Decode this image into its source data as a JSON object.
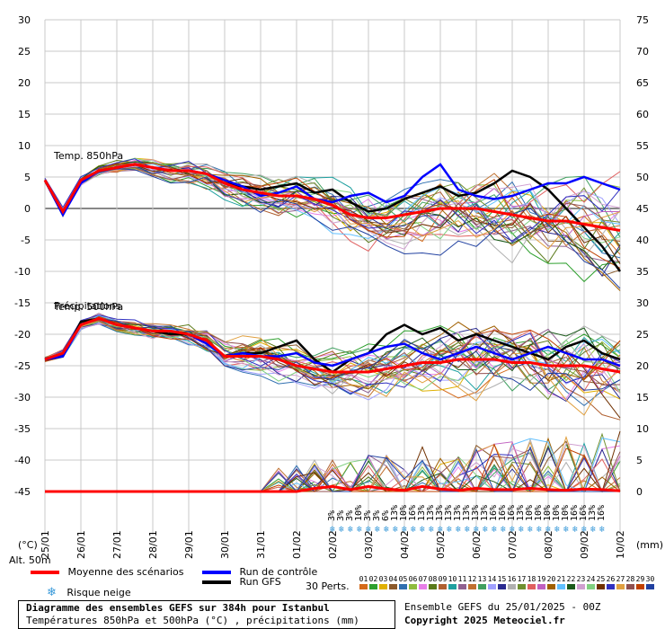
{
  "chart_data": {
    "type": "line",
    "title": "Diagramme des ensembles GEFS sur 384h pour Istanbul",
    "subtitle": "Températures 850hPa et 500hPa (°C) , précipitations (mm)",
    "left_axis": {
      "label": "(°C)",
      "ticks": [
        30,
        25,
        20,
        15,
        10,
        5,
        0,
        -5,
        -10,
        -15,
        -20,
        -25,
        -30,
        -35,
        -40,
        -45
      ]
    },
    "right_axis": {
      "label": "(mm)",
      "ticks": [
        75,
        70,
        65,
        60,
        55,
        50,
        45,
        40,
        35,
        30,
        25,
        20,
        15,
        10,
        5,
        0
      ]
    },
    "altitude_label": "Alt. 50m",
    "x_dates": [
      "25/01",
      "26/01",
      "27/01",
      "28/01",
      "29/01",
      "30/01",
      "31/01",
      "01/02",
      "02/02",
      "03/02",
      "04/02",
      "05/02",
      "06/02",
      "07/02",
      "08/02",
      "09/02",
      "10/02"
    ],
    "panel_labels": {
      "t850": "Temp. 850hPa",
      "t500": "Temp. 500hPa",
      "precip": "Précipitations"
    },
    "series": [
      {
        "name": "Moyenne des scénarios T850",
        "color": "#ff0000",
        "x_hours": [
          0,
          12,
          24,
          36,
          48,
          60,
          72,
          84,
          96,
          108,
          120,
          132,
          144,
          156,
          168,
          180,
          192,
          204,
          216,
          228,
          240,
          252,
          264,
          276,
          288,
          300,
          312,
          324,
          336,
          348,
          360,
          372,
          384
        ],
        "values": [
          4.5,
          -0.5,
          4.5,
          6,
          6.5,
          7,
          6.5,
          6,
          6,
          5.5,
          4,
          3,
          2.5,
          2,
          2,
          1.5,
          0.5,
          -1,
          -1.5,
          -1.5,
          -1,
          -0.5,
          0,
          0,
          0,
          -0.5,
          -1,
          -1.5,
          -2,
          -2,
          -2.5,
          -3,
          -3.5
        ]
      },
      {
        "name": "Run de contrôle T850",
        "color": "#0000ff",
        "x_hours": [
          0,
          12,
          24,
          36,
          48,
          60,
          72,
          84,
          96,
          108,
          120,
          132,
          144,
          156,
          168,
          180,
          192,
          204,
          216,
          228,
          240,
          252,
          264,
          276,
          288,
          300,
          312,
          324,
          336,
          348,
          360,
          372,
          384
        ],
        "values": [
          4.5,
          -1,
          4,
          6,
          6.5,
          7,
          6.5,
          6,
          6,
          5.5,
          4.5,
          3.5,
          2,
          2.5,
          3.5,
          1.5,
          1,
          2,
          2.5,
          1,
          2,
          5,
          7,
          3,
          2,
          1.5,
          2,
          3,
          4,
          4,
          5,
          4,
          3
        ]
      },
      {
        "name": "Run GFS T850",
        "color": "#000000",
        "x_hours": [
          0,
          12,
          24,
          36,
          48,
          60,
          72,
          84,
          96,
          108,
          120,
          132,
          144,
          156,
          168,
          180,
          192,
          204,
          216,
          228,
          240,
          252,
          264,
          276,
          288,
          300,
          312,
          324,
          336,
          348,
          360,
          372,
          384
        ],
        "values": [
          4.5,
          -1,
          4.5,
          6,
          6.5,
          7,
          6.5,
          6,
          6,
          5.5,
          4,
          3.5,
          3,
          3.5,
          4,
          2.5,
          3,
          1,
          -0.5,
          0,
          1.5,
          2.5,
          3.5,
          2,
          2.5,
          4,
          6,
          5,
          3,
          0,
          -3,
          -6,
          -10
        ]
      },
      {
        "name": "Moyenne des scénarios T500",
        "color": "#ff0000",
        "x_hours": [
          0,
          12,
          24,
          36,
          48,
          60,
          72,
          84,
          96,
          108,
          120,
          132,
          144,
          156,
          168,
          180,
          192,
          204,
          216,
          228,
          240,
          252,
          264,
          276,
          288,
          300,
          312,
          324,
          336,
          348,
          360,
          372,
          384
        ],
        "values": [
          -24,
          -23,
          -18.5,
          -17.5,
          -18.5,
          -19,
          -19.5,
          -19.5,
          -20,
          -21,
          -23.5,
          -23.5,
          -23.5,
          -24,
          -25,
          -25.5,
          -26,
          -26,
          -26,
          -25.5,
          -25,
          -24.5,
          -24.5,
          -24,
          -24,
          -24,
          -24.5,
          -24.5,
          -25,
          -25,
          -25,
          -25.5,
          -26
        ]
      },
      {
        "name": "Run de contrôle T500",
        "color": "#0000ff",
        "x_hours": [
          0,
          12,
          24,
          36,
          48,
          60,
          72,
          84,
          96,
          108,
          120,
          132,
          144,
          156,
          168,
          180,
          192,
          204,
          216,
          228,
          240,
          252,
          264,
          276,
          288,
          300,
          312,
          324,
          336,
          348,
          360,
          372,
          384
        ],
        "values": [
          -24,
          -23.5,
          -18.5,
          -17.5,
          -18.5,
          -19,
          -19.5,
          -19.5,
          -20,
          -21.5,
          -23.5,
          -23,
          -23.5,
          -23.5,
          -23,
          -24.5,
          -25,
          -24,
          -23,
          -22,
          -21.5,
          -23,
          -24,
          -23,
          -22,
          -23,
          -24,
          -23,
          -22,
          -23,
          -24,
          -24,
          -25
        ]
      },
      {
        "name": "Run GFS T500",
        "color": "#000000",
        "x_hours": [
          0,
          12,
          24,
          36,
          48,
          60,
          72,
          84,
          96,
          108,
          120,
          132,
          144,
          156,
          168,
          180,
          192,
          204,
          216,
          228,
          240,
          252,
          264,
          276,
          288,
          300,
          312,
          324,
          336,
          348,
          360,
          372,
          384
        ],
        "values": [
          -24,
          -23.5,
          -18,
          -17.5,
          -18.5,
          -19,
          -19.5,
          -20,
          -20,
          -21,
          -23.5,
          -23,
          -23,
          -22,
          -21,
          -24,
          -26,
          -24,
          -23,
          -20,
          -18.5,
          -20,
          -19,
          -21,
          -20,
          -21,
          -22,
          -23,
          -24,
          -22,
          -21,
          -23,
          -24
        ]
      },
      {
        "name": "Moyenne des scénarios Précip",
        "color": "#ff0000",
        "x_hours": [
          0,
          12,
          24,
          36,
          48,
          60,
          72,
          84,
          96,
          108,
          120,
          132,
          144,
          156,
          168,
          180,
          192,
          204,
          216,
          228,
          240,
          252,
          264,
          276,
          288,
          300,
          312,
          324,
          336,
          348,
          360,
          372,
          384
        ],
        "values": [
          0,
          0,
          0,
          0,
          0,
          0,
          0,
          0,
          0,
          0,
          0,
          0,
          0,
          0,
          0,
          0.5,
          0.8,
          0.3,
          0.8,
          0.4,
          0.2,
          0.8,
          0.4,
          0.2,
          0.5,
          0.3,
          0.3,
          0.5,
          0.3,
          0.2,
          0.4,
          0.3,
          0.1
        ]
      }
    ],
    "snow_risk": [
      "3%",
      "3%",
      "3%",
      "10%",
      "3%",
      "3%",
      "6%",
      "13%",
      "10%",
      "16%",
      "13%",
      "13%",
      "13%",
      "13%",
      "13%",
      "13%",
      "13%",
      "13%",
      "16%",
      "16%",
      "16%",
      "13%",
      "10%",
      "10%",
      "10%",
      "10%",
      "10%",
      "16%",
      "16%",
      "13%",
      "16%"
    ]
  },
  "legend": {
    "mean": "Moyenne des scénarios",
    "control": "Run de contrôle",
    "gfs": "Run GFS",
    "snow": "Risque neige",
    "perts_label": "30 Perts.",
    "pert_numbers": [
      "01",
      "02",
      "03",
      "04",
      "05",
      "06",
      "07",
      "08",
      "09",
      "10",
      "11",
      "12",
      "13",
      "14",
      "15",
      "16",
      "17",
      "18",
      "19",
      "20",
      "21",
      "22",
      "23",
      "24",
      "25",
      "26",
      "27",
      "28",
      "29",
      "30"
    ],
    "pert_colors": [
      "#d46a1a",
      "#2ea02e",
      "#e0b000",
      "#8b5a2b",
      "#2f6fb0",
      "#8fbc3f",
      "#e87fe8",
      "#5a7a1a",
      "#b06030",
      "#1fa0a0",
      "#906090",
      "#c07030",
      "#40a060",
      "#a0a0ff",
      "#2a2a90",
      "#b0b0b0",
      "#709030",
      "#e06060",
      "#c060c0",
      "#a06000",
      "#60c0ff",
      "#1a5a1a",
      "#d0a0d0",
      "#80d080",
      "#703000",
      "#3030c0",
      "#e0a040",
      "#905050",
      "#c04000",
      "#2040a0"
    ]
  },
  "footer": {
    "title": "Diagramme des ensembles GEFS sur 384h pour Istanbul",
    "subtitle": "Températures 850hPa et 500hPa (°C) , précipitations (mm)",
    "run": "Ensemble GEFS du 25/01/2025 - 00Z",
    "copyright": "Copyright 2025 Meteociel.fr"
  }
}
